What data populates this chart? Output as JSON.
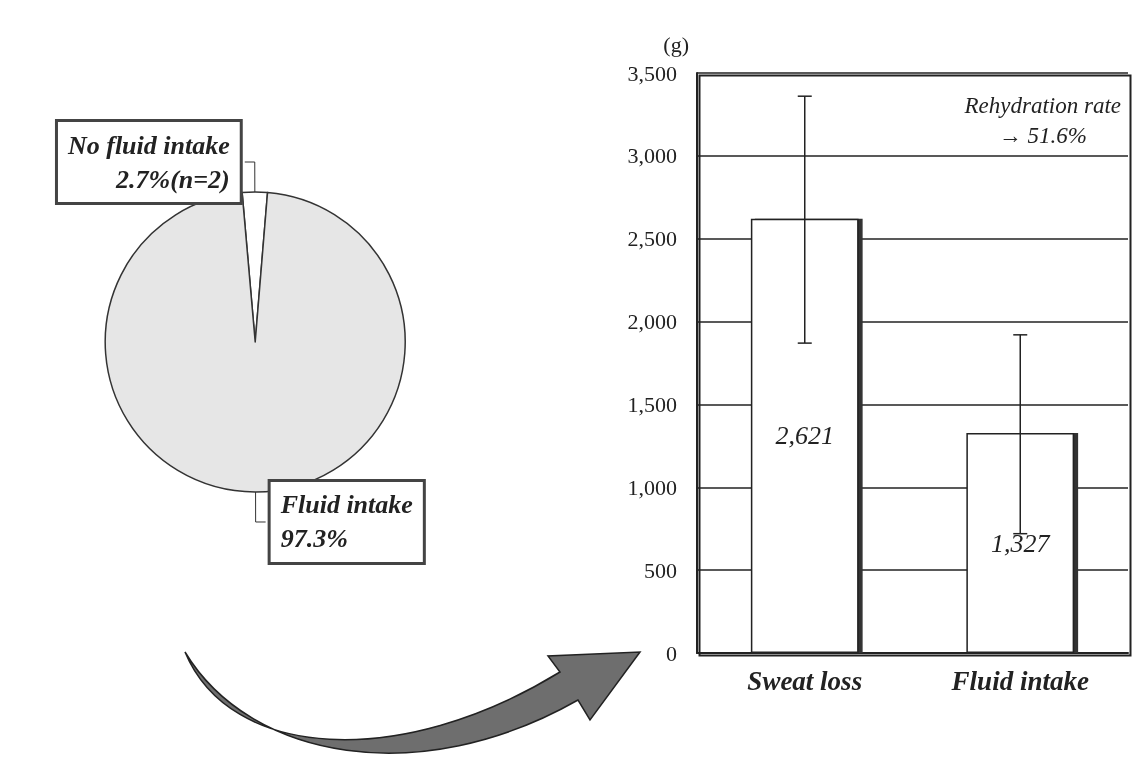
{
  "chart_data": [
    {
      "type": "pie",
      "categories": [
        "No fluid intake",
        "Fluid intake"
      ],
      "values": [
        2.7,
        97.3
      ],
      "colors": [
        "#ffffff",
        "#e6e6e6"
      ],
      "value_labels": [
        "2.7%(n=2)",
        "97.3%"
      ]
    },
    {
      "type": "bar",
      "ylabel": "(g)",
      "categories": [
        "Sweat loss",
        "Fluid intake"
      ],
      "values": [
        2621,
        1327
      ],
      "color": "#ffffff",
      "errors": [
        [
          1870,
          3360
        ],
        [
          720,
          1920
        ]
      ],
      "value_labels": [
        "2,621",
        "1,327"
      ],
      "ylim": [
        0,
        3500
      ],
      "yticks": [
        0,
        500,
        {
          "value": 1000,
          "label": "1,000"
        },
        {
          "value": 1500,
          "label": "1,500"
        },
        {
          "value": 2000,
          "label": "2,000"
        },
        {
          "value": 2500,
          "label": "2,500"
        },
        {
          "value": 3000,
          "label": "3,000"
        },
        {
          "value": 3500,
          "label": "3,500"
        }
      ],
      "grid": "y",
      "annotations": [
        "Rehydration rate\n→ 51.6%"
      ]
    }
  ]
}
